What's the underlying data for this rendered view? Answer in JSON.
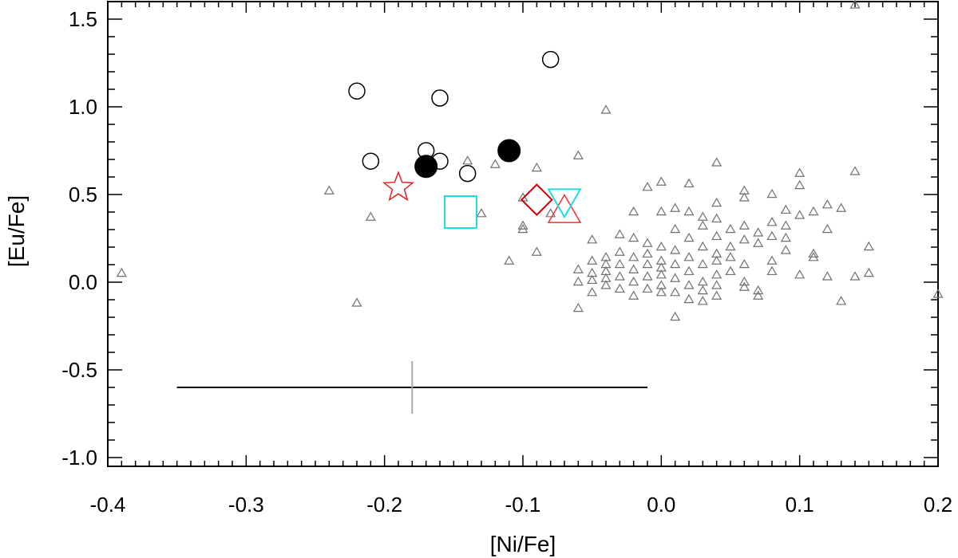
{
  "chart_data": {
    "type": "scatter",
    "title": "",
    "xlabel": "[Ni/Fe]",
    "ylabel": "[Eu/Fe]",
    "xlim": [
      -0.4,
      0.2
    ],
    "ylim": [
      -1.05,
      1.6
    ],
    "x_ticks": [
      -0.4,
      -0.3,
      -0.2,
      -0.1,
      0.0,
      0.1,
      0.2
    ],
    "x_tick_labels": [
      "-0.4",
      "-0.3",
      "-0.2",
      "-0.1",
      "0.0",
      "0.1",
      "0.2"
    ],
    "y_ticks": [
      -1.0,
      -0.5,
      0.0,
      0.5,
      1.0,
      1.5
    ],
    "y_tick_labels": [
      "-1.0",
      "-0.5",
      "0.0",
      "0.5",
      "1.0",
      "1.5"
    ],
    "grid": false,
    "series": [
      {
        "marker": "triangle-small",
        "color": "#707070",
        "points": [
          [
            -0.39,
            0.05
          ],
          [
            -0.24,
            0.52
          ],
          [
            -0.22,
            -0.12
          ],
          [
            -0.21,
            0.37
          ],
          [
            -0.14,
            0.69
          ],
          [
            -0.13,
            0.39
          ],
          [
            -0.12,
            0.67
          ],
          [
            -0.11,
            0.12
          ],
          [
            -0.1,
            0.48
          ],
          [
            -0.1,
            0.32
          ],
          [
            -0.1,
            0.3
          ],
          [
            -0.09,
            0.17
          ],
          [
            -0.09,
            0.65
          ],
          [
            -0.08,
            0.39
          ],
          [
            -0.06,
            0.72
          ],
          [
            -0.06,
            -0.15
          ],
          [
            -0.06,
            0.0
          ],
          [
            -0.06,
            0.07
          ],
          [
            -0.05,
            0.24
          ],
          [
            -0.05,
            0.12
          ],
          [
            -0.05,
            0.05
          ],
          [
            -0.05,
            0.01
          ],
          [
            -0.05,
            -0.06
          ],
          [
            -0.04,
            0.98
          ],
          [
            -0.04,
            0.14
          ],
          [
            -0.04,
            0.1
          ],
          [
            -0.04,
            0.06
          ],
          [
            -0.04,
            0.02
          ],
          [
            -0.04,
            -0.02
          ],
          [
            -0.03,
            0.27
          ],
          [
            -0.03,
            0.17
          ],
          [
            -0.03,
            0.1
          ],
          [
            -0.03,
            0.03
          ],
          [
            -0.03,
            -0.04
          ],
          [
            -0.02,
            0.4
          ],
          [
            -0.02,
            0.25
          ],
          [
            -0.02,
            0.14
          ],
          [
            -0.02,
            0.07
          ],
          [
            -0.02,
            0.0
          ],
          [
            -0.02,
            -0.08
          ],
          [
            -0.01,
            0.54
          ],
          [
            -0.01,
            0.22
          ],
          [
            -0.01,
            0.16
          ],
          [
            -0.01,
            0.1
          ],
          [
            -0.01,
            0.03
          ],
          [
            -0.01,
            -0.04
          ],
          [
            0.0,
            0.57
          ],
          [
            0.0,
            0.4
          ],
          [
            0.0,
            0.2
          ],
          [
            0.0,
            0.12
          ],
          [
            0.0,
            0.08
          ],
          [
            0.0,
            0.04
          ],
          [
            0.0,
            -0.02
          ],
          [
            0.0,
            -0.06
          ],
          [
            0.01,
            0.42
          ],
          [
            0.01,
            0.3
          ],
          [
            0.01,
            0.18
          ],
          [
            0.01,
            0.1
          ],
          [
            0.01,
            0.02
          ],
          [
            0.01,
            -0.06
          ],
          [
            0.01,
            -0.2
          ],
          [
            0.02,
            0.56
          ],
          [
            0.02,
            0.4
          ],
          [
            0.02,
            0.25
          ],
          [
            0.02,
            0.14
          ],
          [
            0.02,
            0.06
          ],
          [
            0.02,
            -0.02
          ],
          [
            0.02,
            -0.1
          ],
          [
            0.03,
            0.37
          ],
          [
            0.03,
            0.32
          ],
          [
            0.03,
            0.2
          ],
          [
            0.03,
            0.1
          ],
          [
            0.03,
            0.0
          ],
          [
            0.03,
            -0.05
          ],
          [
            0.03,
            -0.11
          ],
          [
            0.04,
            0.68
          ],
          [
            0.04,
            0.45
          ],
          [
            0.04,
            0.36
          ],
          [
            0.04,
            0.26
          ],
          [
            0.04,
            0.16
          ],
          [
            0.04,
            0.12
          ],
          [
            0.04,
            0.04
          ],
          [
            0.04,
            -0.02
          ],
          [
            0.04,
            -0.08
          ],
          [
            0.05,
            0.3
          ],
          [
            0.05,
            0.2
          ],
          [
            0.05,
            0.14
          ],
          [
            0.05,
            0.06
          ],
          [
            0.06,
            0.52
          ],
          [
            0.06,
            0.48
          ],
          [
            0.06,
            0.32
          ],
          [
            0.06,
            0.24
          ],
          [
            0.06,
            0.1
          ],
          [
            0.06,
            0.0
          ],
          [
            0.06,
            -0.03
          ],
          [
            0.07,
            0.28
          ],
          [
            0.07,
            0.22
          ],
          [
            0.07,
            -0.05
          ],
          [
            0.07,
            -0.08
          ],
          [
            0.08,
            0.5
          ],
          [
            0.08,
            0.34
          ],
          [
            0.08,
            0.26
          ],
          [
            0.08,
            0.12
          ],
          [
            0.08,
            0.06
          ],
          [
            0.09,
            0.41
          ],
          [
            0.09,
            0.32
          ],
          [
            0.09,
            0.25
          ],
          [
            0.09,
            0.18
          ],
          [
            0.1,
            0.62
          ],
          [
            0.1,
            0.55
          ],
          [
            0.1,
            0.38
          ],
          [
            0.1,
            0.04
          ],
          [
            0.11,
            0.4
          ],
          [
            0.11,
            0.16
          ],
          [
            0.11,
            0.14
          ],
          [
            0.12,
            0.44
          ],
          [
            0.12,
            0.3
          ],
          [
            0.12,
            0.03
          ],
          [
            0.13,
            0.42
          ],
          [
            0.13,
            -0.11
          ],
          [
            0.14,
            1.58
          ],
          [
            0.14,
            0.63
          ],
          [
            0.14,
            0.03
          ],
          [
            0.15,
            0.2
          ],
          [
            0.15,
            0.05
          ],
          [
            0.2,
            -0.07
          ]
        ]
      },
      {
        "marker": "circle-open",
        "color": "#000000",
        "points": [
          [
            -0.22,
            1.09
          ],
          [
            -0.21,
            0.69
          ],
          [
            -0.17,
            0.75
          ],
          [
            -0.16,
            0.69
          ],
          [
            -0.16,
            1.05
          ],
          [
            -0.14,
            0.62
          ],
          [
            -0.08,
            1.27
          ]
        ]
      },
      {
        "marker": "circle-filled",
        "color": "#000000",
        "points": [
          [
            -0.17,
            0.66
          ],
          [
            -0.11,
            0.75
          ]
        ]
      },
      {
        "marker": "star-open",
        "color": "#dd2222",
        "points": [
          [
            -0.19,
            0.54
          ]
        ]
      },
      {
        "marker": "square-open",
        "color": "#22dddd",
        "points": [
          [
            -0.145,
            0.4
          ]
        ]
      },
      {
        "marker": "diamond-open",
        "color": "#cc0000",
        "points": [
          [
            -0.09,
            0.47
          ]
        ]
      },
      {
        "marker": "triangle-large",
        "color": "#ee3333",
        "points": [
          [
            -0.07,
            0.4
          ]
        ]
      },
      {
        "marker": "triangle-down-large",
        "color": "#22dddd",
        "points": [
          [
            -0.07,
            0.47
          ]
        ]
      }
    ],
    "error_bar": {
      "x": -0.18,
      "y": -0.6,
      "x_min": -0.35,
      "x_max": -0.01,
      "y_min": -0.75,
      "y_max": -0.45
    }
  }
}
